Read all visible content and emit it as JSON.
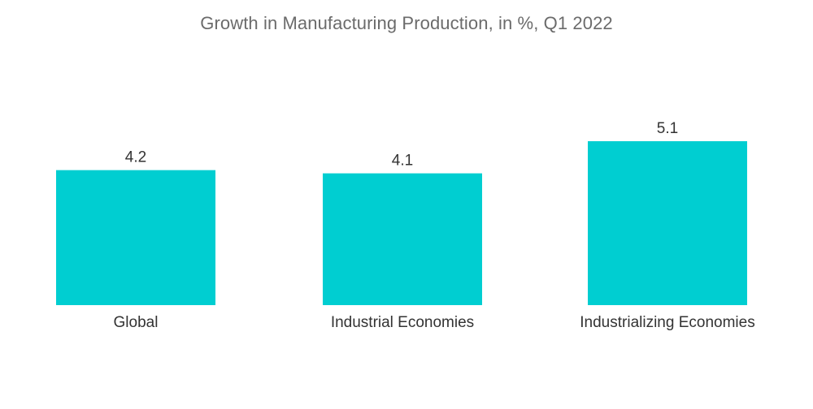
{
  "chart_data": {
    "type": "bar",
    "title": "Growth in Manufacturing Production, in %, Q1 2022",
    "categories": [
      "Global",
      "Industrial Economies",
      "Industrializing Economies"
    ],
    "values": [
      4.2,
      4.1,
      5.1
    ],
    "xlabel": "",
    "ylabel": "",
    "ylim": [
      0,
      5.1
    ],
    "grid": false,
    "bar_color": "#00CED1",
    "show_value_labels": true
  }
}
